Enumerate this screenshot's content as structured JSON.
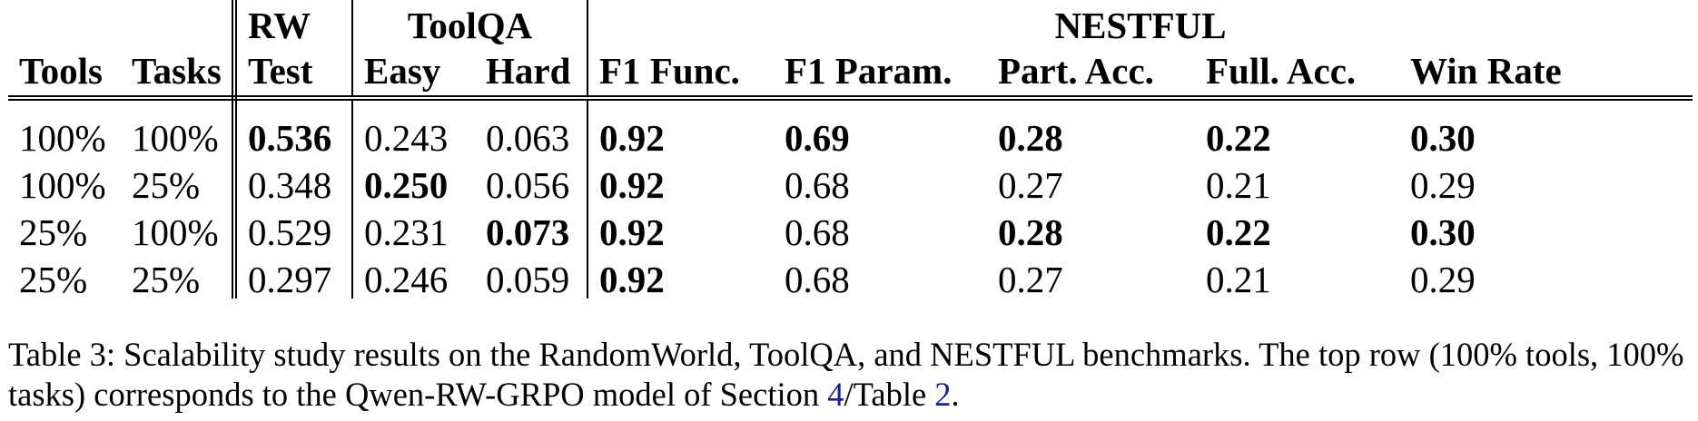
{
  "table": {
    "header_row1": {
      "rw": "RW",
      "toolqa": "ToolQA",
      "nestful": "NESTFUL"
    },
    "header_row2": {
      "tools": "Tools",
      "tasks": "Tasks",
      "rw_test": "Test",
      "easy": "Easy",
      "hard": "Hard",
      "f1_func": "F1 Func.",
      "f1_param": "F1 Param.",
      "part_acc": "Part. Acc.",
      "full_acc": "Full. Acc.",
      "win_rate": "Win Rate"
    },
    "rows": [
      [
        "100%",
        "100%",
        "0.536",
        "0.243",
        "0.063",
        "0.92",
        "0.69",
        "0.28",
        "0.22",
        "0.30"
      ],
      [
        "100%",
        "25%",
        "0.348",
        "0.250",
        "0.056",
        "0.92",
        "0.68",
        "0.27",
        "0.21",
        "0.29"
      ],
      [
        "25%",
        "100%",
        "0.529",
        "0.231",
        "0.073",
        "0.92",
        "0.68",
        "0.28",
        "0.22",
        "0.30"
      ],
      [
        "25%",
        "25%",
        "0.297",
        "0.246",
        "0.059",
        "0.92",
        "0.68",
        "0.27",
        "0.21",
        "0.29"
      ]
    ],
    "bold_cells": [
      [
        false,
        false,
        true,
        false,
        false,
        true,
        true,
        true,
        true,
        true
      ],
      [
        false,
        false,
        false,
        true,
        false,
        true,
        false,
        false,
        false,
        false
      ],
      [
        false,
        false,
        false,
        false,
        true,
        true,
        false,
        true,
        true,
        true
      ],
      [
        false,
        false,
        false,
        false,
        false,
        true,
        false,
        false,
        false,
        false
      ]
    ]
  },
  "caption": {
    "part1": "Table 3: Scalability study results on the RandomWorld, ToolQA, and NESTFUL benchmarks. The top row (100% tools, 100% tasks) corresponds to the Qwen-RW-GRPO model of Section ",
    "ref_section": "4",
    "part2": "/Table ",
    "ref_table": "2",
    "part3": "."
  },
  "colors": {
    "text": "#000000",
    "link": "#1a1aa6"
  }
}
